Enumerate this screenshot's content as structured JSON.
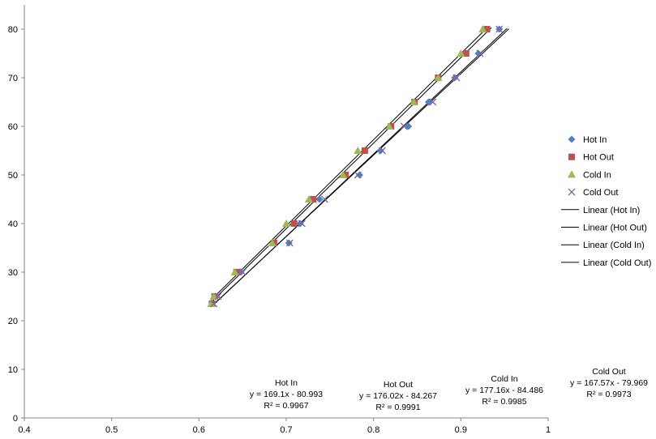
{
  "chart_data": {
    "type": "scatter",
    "xlim": [
      0.4,
      1
    ],
    "ylim": [
      0,
      85
    ],
    "x_ticks": [
      "0.4",
      "0.5",
      "0.6",
      "0.7",
      "0.8",
      "0.9",
      "1"
    ],
    "y_ticks": [
      "0",
      "10",
      "20",
      "30",
      "40",
      "50",
      "60",
      "70",
      "80"
    ],
    "grid": false,
    "legend_position": "right",
    "series": [
      {
        "name": "Hot In",
        "marker": "diamond",
        "color": "#4F81BD",
        "points": [
          [
            0.62,
            25
          ],
          [
            0.648,
            30
          ],
          [
            0.703,
            36
          ],
          [
            0.716,
            40
          ],
          [
            0.738,
            45
          ],
          [
            0.784,
            50
          ],
          [
            0.808,
            55
          ],
          [
            0.84,
            60
          ],
          [
            0.863,
            65
          ],
          [
            0.893,
            70
          ],
          [
            0.92,
            75
          ],
          [
            0.944,
            80
          ]
        ]
      },
      {
        "name": "Hot Out",
        "marker": "square",
        "color": "#C0504D",
        "points": [
          [
            0.615,
            23.5
          ],
          [
            0.618,
            25
          ],
          [
            0.643,
            30
          ],
          [
            0.686,
            36
          ],
          [
            0.709,
            40
          ],
          [
            0.731,
            45
          ],
          [
            0.768,
            50
          ],
          [
            0.79,
            55
          ],
          [
            0.82,
            60
          ],
          [
            0.847,
            65
          ],
          [
            0.874,
            70
          ],
          [
            0.906,
            75
          ],
          [
            0.93,
            80
          ]
        ]
      },
      {
        "name": "Cold In",
        "marker": "triangle",
        "color": "#9BBB59",
        "points": [
          [
            0.614,
            23.5
          ],
          [
            0.617,
            25
          ],
          [
            0.641,
            30
          ],
          [
            0.684,
            36
          ],
          [
            0.7,
            40
          ],
          [
            0.726,
            45
          ],
          [
            0.765,
            50
          ],
          [
            0.782,
            55
          ],
          [
            0.818,
            60
          ],
          [
            0.846,
            65
          ],
          [
            0.874,
            70
          ],
          [
            0.9,
            75
          ],
          [
            0.925,
            80
          ]
        ]
      },
      {
        "name": "Cold Out",
        "marker": "x",
        "color": "#8064A2",
        "points": [
          [
            0.617,
            23.5
          ],
          [
            0.622,
            25
          ],
          [
            0.65,
            30
          ],
          [
            0.704,
            36
          ],
          [
            0.718,
            40
          ],
          [
            0.744,
            45
          ],
          [
            0.782,
            50
          ],
          [
            0.81,
            55
          ],
          [
            0.835,
            60
          ],
          [
            0.868,
            65
          ],
          [
            0.895,
            70
          ],
          [
            0.922,
            75
          ],
          [
            0.944,
            80
          ]
        ]
      }
    ],
    "trendlines": [
      {
        "name": "Linear (Hot In)",
        "color": "#000000",
        "x_range": [
          0.617,
          0.953
        ],
        "equation": "y = 169.1x - 80.993",
        "r2": "R² = 0.9967",
        "slope": 169.1,
        "intercept": -80.993
      },
      {
        "name": "Linear (Hot Out)",
        "color": "#000000",
        "x_range": [
          0.614,
          0.935
        ],
        "equation": "y = 176.02x - 84.267",
        "r2": "R² = 0.9991",
        "slope": 176.02,
        "intercept": -84.267
      },
      {
        "name": "Linear (Cold In)",
        "color": "#000000",
        "x_range": [
          0.614,
          0.928
        ],
        "equation": "y = 177.16x - 84.486",
        "r2": "R² = 0.9985",
        "slope": 177.16,
        "intercept": -84.486
      },
      {
        "name": "Linear (Cold Out)",
        "color": "#000000",
        "x_range": [
          0.617,
          0.955
        ],
        "equation": "y = 167.57x - 79.969",
        "r2": "R² = 0.9973",
        "slope": 167.57,
        "intercept": -79.969
      }
    ],
    "equation_labels": [
      {
        "title": "Hot In",
        "equation": "y = 169.1x - 80.993",
        "r2": "R² = 0.9967"
      },
      {
        "title": "Hot Out",
        "equation": "y = 176.02x - 84.267",
        "r2": "R² = 0.9991"
      },
      {
        "title": "Cold In",
        "equation": "y = 177.16x - 84.486",
        "r2": "R² = 0.9985"
      },
      {
        "title": "Cold Out",
        "equation": "y = 167.57x - 79.969",
        "r2": "R² = 0.9973"
      }
    ]
  }
}
